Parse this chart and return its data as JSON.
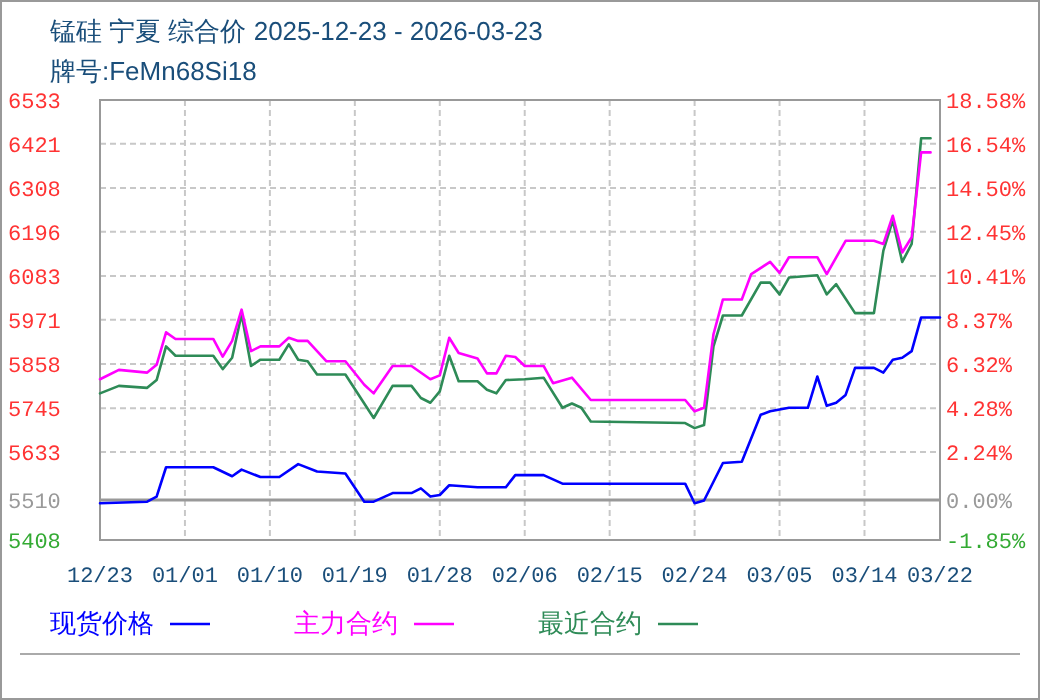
{
  "chart_data": {
    "type": "line",
    "title": "锰硅 宁夏 综合价 2025-12-23 - 2026-03-23",
    "subtitle": "牌号:FeMn68Si18",
    "xlim": [
      "2025-12-23",
      "2026-03-22"
    ],
    "xticks": [
      {
        "value": "2025-12-23",
        "label": "12/23"
      },
      {
        "value": "2026-01-01",
        "label": "01/01"
      },
      {
        "value": "2026-01-10",
        "label": "01/10"
      },
      {
        "value": "2026-01-19",
        "label": "01/19"
      },
      {
        "value": "2026-01-28",
        "label": "01/28"
      },
      {
        "value": "2026-02-06",
        "label": "02/06"
      },
      {
        "value": "2026-02-15",
        "label": "02/15"
      },
      {
        "value": "2026-02-24",
        "label": "02/24"
      },
      {
        "value": "2026-03-05",
        "label": "03/05"
      },
      {
        "value": "2026-03-14",
        "label": "03/14"
      },
      {
        "value": "2026-03-22",
        "label": "03/22"
      }
    ],
    "ylim": [
      5408,
      6533
    ],
    "yticks": [
      5408,
      5510,
      5633,
      5745,
      5858,
      5971,
      6083,
      6196,
      6308,
      6421,
      6533
    ],
    "y2lim": [
      -1.85,
      18.58
    ],
    "y2ticks": [
      {
        "value": -1.85,
        "label": "-1.85%"
      },
      {
        "value": 0,
        "label": "0.00%"
      },
      {
        "value": 2.24,
        "label": "2.24%"
      },
      {
        "value": 4.28,
        "label": "4.28%"
      },
      {
        "value": 6.32,
        "label": "6.32%"
      },
      {
        "value": 8.37,
        "label": "8.37%"
      },
      {
        "value": 10.41,
        "label": "10.41%"
      },
      {
        "value": 12.45,
        "label": "12.45%"
      },
      {
        "value": 14.5,
        "label": "14.50%"
      },
      {
        "value": 16.54,
        "label": "16.54%"
      },
      {
        "value": 18.58,
        "label": "18.58%"
      }
    ],
    "grid": true,
    "legend": "bottom",
    "ref_lines": [
      {
        "axis": "y",
        "value": 5510,
        "color": "#999999"
      }
    ],
    "series": [
      {
        "name": "现货价格",
        "color": "#0000ff",
        "x": [
          "2025-12-23",
          "2025-12-28",
          "2025-12-29",
          "2025-12-30",
          "2026-01-04",
          "2026-01-06",
          "2026-01-07",
          "2026-01-09",
          "2026-01-11",
          "2026-01-13",
          "2026-01-15",
          "2026-01-18",
          "2026-01-20",
          "2026-01-21",
          "2026-01-23",
          "2026-01-25",
          "2026-01-26",
          "2026-01-27",
          "2026-01-28",
          "2026-01-29",
          "2026-02-01",
          "2026-02-04",
          "2026-02-05",
          "2026-02-08",
          "2026-02-10",
          "2026-02-23",
          "2026-02-24",
          "2026-02-25",
          "2026-02-27",
          "2026-03-01",
          "2026-03-03",
          "2026-03-04",
          "2026-03-06",
          "2026-03-08",
          "2026-03-09",
          "2026-03-10",
          "2026-03-11",
          "2026-03-12",
          "2026-03-13",
          "2026-03-15",
          "2026-03-16",
          "2026-03-17",
          "2026-03-18",
          "2026-03-19",
          "2026-03-20",
          "2026-03-22"
        ],
        "values": [
          5502,
          5506,
          5519,
          5594,
          5594,
          5571,
          5588,
          5569,
          5569,
          5602,
          5583,
          5578,
          5506,
          5506,
          5528,
          5528,
          5540,
          5519,
          5523,
          5548,
          5543,
          5543,
          5574,
          5574,
          5552,
          5552,
          5502,
          5509,
          5605,
          5608,
          5728,
          5737,
          5746,
          5746,
          5826,
          5751,
          5759,
          5779,
          5848,
          5848,
          5836,
          5869,
          5874,
          5891,
          5977,
          5977
        ]
      },
      {
        "name": "主力合约",
        "color": "#ff00ff",
        "x": [
          "2025-12-23",
          "2025-12-25",
          "2025-12-28",
          "2025-12-29",
          "2025-12-30",
          "2025-12-31",
          "2026-01-04",
          "2026-01-05",
          "2026-01-06",
          "2026-01-07",
          "2026-01-08",
          "2026-01-09",
          "2026-01-11",
          "2026-01-12",
          "2026-01-13",
          "2026-01-14",
          "2026-01-16",
          "2026-01-18",
          "2026-01-20",
          "2026-01-21",
          "2026-01-23",
          "2026-01-25",
          "2026-01-27",
          "2026-01-28",
          "2026-01-29",
          "2026-01-30",
          "2026-02-01",
          "2026-02-02",
          "2026-02-03",
          "2026-02-04",
          "2026-02-05",
          "2026-02-06",
          "2026-02-08",
          "2026-02-09",
          "2026-02-11",
          "2026-02-13",
          "2026-02-23",
          "2026-02-24",
          "2026-02-25",
          "2026-02-26",
          "2026-02-27",
          "2026-03-01",
          "2026-03-02",
          "2026-03-04",
          "2026-03-05",
          "2026-03-06",
          "2026-03-09",
          "2026-03-10",
          "2026-03-12",
          "2026-03-15",
          "2026-03-16",
          "2026-03-17",
          "2026-03-18",
          "2026-03-19",
          "2026-03-20",
          "2026-03-21"
        ],
        "values": [
          5819,
          5843,
          5836,
          5856,
          5939,
          5922,
          5922,
          5877,
          5917,
          5997,
          5891,
          5903,
          5903,
          5925,
          5917,
          5917,
          5865,
          5865,
          5805,
          5783,
          5853,
          5853,
          5819,
          5829,
          5925,
          5886,
          5872,
          5834,
          5834,
          5879,
          5876,
          5853,
          5853,
          5809,
          5823,
          5766,
          5766,
          5737,
          5746,
          5934,
          6023,
          6023,
          6088,
          6119,
          6091,
          6131,
          6131,
          6088,
          6173,
          6173,
          6165,
          6237,
          6143,
          6182,
          6399,
          6399
        ]
      },
      {
        "name": "最近合约",
        "color": "#2e8b57",
        "x": [
          "2025-12-23",
          "2025-12-25",
          "2025-12-28",
          "2025-12-29",
          "2025-12-30",
          "2025-12-31",
          "2026-01-04",
          "2026-01-05",
          "2026-01-06",
          "2026-01-07",
          "2026-01-08",
          "2026-01-09",
          "2026-01-11",
          "2026-01-12",
          "2026-01-13",
          "2026-01-14",
          "2026-01-15",
          "2026-01-18",
          "2026-01-20",
          "2026-01-21",
          "2026-01-23",
          "2026-01-25",
          "2026-01-26",
          "2026-01-27",
          "2026-01-28",
          "2026-01-29",
          "2026-01-30",
          "2026-02-01",
          "2026-02-02",
          "2026-02-03",
          "2026-02-04",
          "2026-02-06",
          "2026-02-08",
          "2026-02-10",
          "2026-02-11",
          "2026-02-12",
          "2026-02-13",
          "2026-02-23",
          "2026-02-24",
          "2026-02-25",
          "2026-02-26",
          "2026-02-27",
          "2026-03-01",
          "2026-03-03",
          "2026-03-04",
          "2026-03-05",
          "2026-03-06",
          "2026-03-09",
          "2026-03-10",
          "2026-03-11",
          "2026-03-13",
          "2026-03-15",
          "2026-03-16",
          "2026-03-17",
          "2026-03-18",
          "2026-03-19",
          "2026-03-20",
          "2026-03-21"
        ],
        "values": [
          5783,
          5802,
          5797,
          5817,
          5903,
          5879,
          5879,
          5845,
          5874,
          5985,
          5853,
          5869,
          5869,
          5908,
          5869,
          5865,
          5831,
          5831,
          5757,
          5720,
          5802,
          5802,
          5771,
          5759,
          5788,
          5879,
          5814,
          5814,
          5792,
          5783,
          5817,
          5819,
          5823,
          5746,
          5757,
          5746,
          5711,
          5707,
          5694,
          5702,
          5903,
          5982,
          5982,
          6066,
          6066,
          6036,
          6079,
          6085,
          6036,
          6062,
          5988,
          5988,
          6148,
          6225,
          6119,
          6165,
          6435,
          6435
        ]
      }
    ]
  }
}
